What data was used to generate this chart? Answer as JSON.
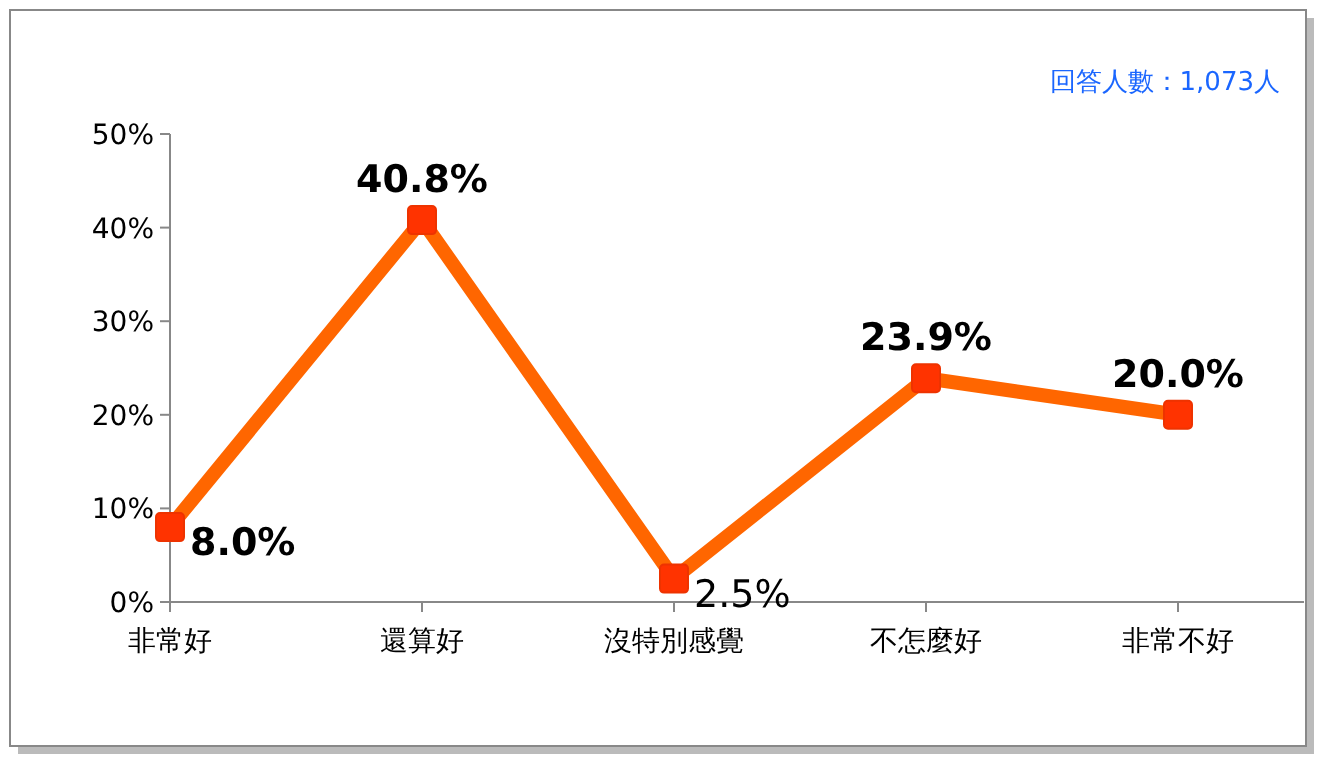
{
  "chart_data": {
    "type": "line",
    "categories": [
      "非常好",
      "還算好",
      "沒特別感覺",
      "不怎麼好",
      "非常不好"
    ],
    "series": [
      {
        "color": "#ff6600",
        "values": [
          8.0,
          40.8,
          2.5,
          23.9,
          20.0
        ],
        "value_labels": [
          "8.0%",
          "40.8%",
          "2.5%",
          "23.9%",
          "20.0%"
        ]
      }
    ],
    "ylim": [
      0,
      50
    ],
    "yticks": [
      {
        "value": 0,
        "label": "0%"
      },
      {
        "value": 10,
        "label": "10%"
      },
      {
        "value": 20,
        "label": "20%"
      },
      {
        "value": 30,
        "label": "30%"
      },
      {
        "value": 40,
        "label": "40%"
      },
      {
        "value": 50,
        "label": "50%"
      }
    ],
    "marker": "square",
    "line_style": "solid",
    "grid": false,
    "annotations": [
      "回答人數：1,073人"
    ]
  }
}
